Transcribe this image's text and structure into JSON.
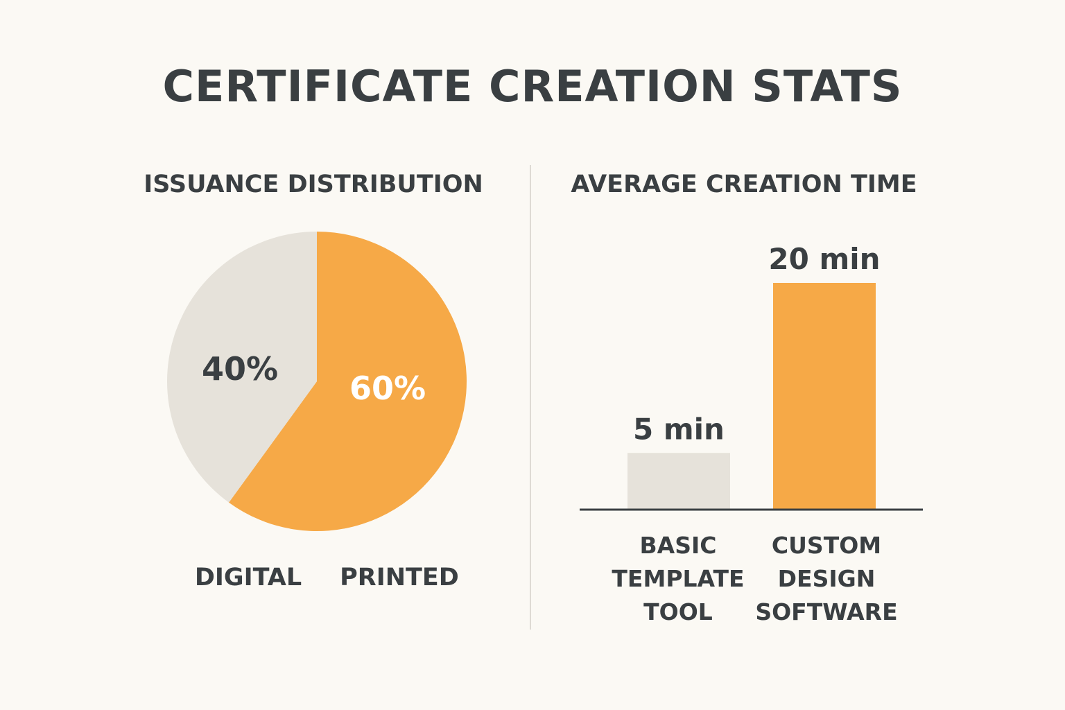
{
  "title": "CERTIFICATE CREATION STATS",
  "colors": {
    "background": "#fbf9f4",
    "accent": "#f6a947",
    "neutral": "#e6e2da",
    "text": "#3a3f42",
    "pie_label_light": "#ffffff"
  },
  "chart_data": [
    {
      "type": "pie",
      "title": "ISSUANCE DISTRIBUTION",
      "categories": [
        "DIGITAL",
        "PRINTED"
      ],
      "values": [
        40,
        60
      ],
      "value_labels": [
        "40%",
        "60%"
      ],
      "colors": [
        "#e6e2da",
        "#f6a947"
      ]
    },
    {
      "type": "bar",
      "title": "AVERAGE CREATION TIME",
      "categories": [
        [
          "BASIC",
          "TEMPLATE",
          "TOOL"
        ],
        [
          "CUSTOM",
          "DESIGN",
          "SOFTWARE"
        ]
      ],
      "values": [
        5,
        20
      ],
      "value_labels": [
        "5 min",
        "20 min"
      ],
      "unit": "min",
      "colors": [
        "#e6e2da",
        "#f6a947"
      ],
      "ylim": [
        0,
        20
      ],
      "grid": false
    }
  ]
}
